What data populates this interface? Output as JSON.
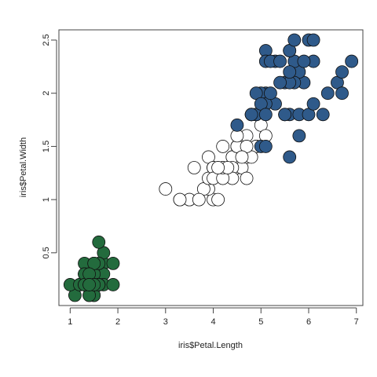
{
  "chart_data": {
    "type": "scatter",
    "x_label": "iris$Petal.Length",
    "y_label": "iris$Petal.Width",
    "xlim": [
      0.764,
      7.136
    ],
    "ylim": [
      0.004,
      2.596
    ],
    "xticks": [
      1,
      2,
      3,
      4,
      5,
      6,
      7
    ],
    "yticks": [
      0.5,
      1.0,
      1.5,
      2.0,
      2.5
    ],
    "series": [
      {
        "color": "#236b3d",
        "x": [
          1.4,
          1.4,
          1.3,
          1.5,
          1.4,
          1.7,
          1.4,
          1.5,
          1.4,
          1.5,
          1.5,
          1.6,
          1.4,
          1.1,
          1.2,
          1.5,
          1.3,
          1.4,
          1.7,
          1.5,
          1.7,
          1.5,
          1.0,
          1.7,
          1.9,
          1.6,
          1.6,
          1.5,
          1.4,
          1.6,
          1.6,
          1.5,
          1.5,
          1.4,
          1.5,
          1.2,
          1.3,
          1.4,
          1.3,
          1.5,
          1.3,
          1.3,
          1.3,
          1.6,
          1.9,
          1.4,
          1.6,
          1.4,
          1.5,
          1.4
        ],
        "values": [
          0.2,
          0.2,
          0.2,
          0.2,
          0.2,
          0.4,
          0.3,
          0.2,
          0.2,
          0.1,
          0.2,
          0.2,
          0.1,
          0.1,
          0.2,
          0.4,
          0.4,
          0.3,
          0.3,
          0.3,
          0.2,
          0.4,
          0.2,
          0.5,
          0.2,
          0.2,
          0.4,
          0.2,
          0.2,
          0.2,
          0.2,
          0.4,
          0.1,
          0.2,
          0.2,
          0.2,
          0.2,
          0.1,
          0.2,
          0.2,
          0.3,
          0.3,
          0.2,
          0.6,
          0.4,
          0.3,
          0.2,
          0.2,
          0.2,
          0.2
        ]
      },
      {
        "color": "#ffffff",
        "x": [
          4.7,
          4.5,
          4.9,
          4.0,
          4.6,
          4.5,
          4.7,
          3.3,
          4.6,
          3.9,
          3.5,
          4.2,
          4.0,
          4.7,
          3.6,
          4.4,
          4.5,
          4.1,
          4.5,
          3.9,
          4.8,
          4.0,
          4.9,
          4.7,
          4.3,
          4.4,
          4.8,
          5.0,
          4.5,
          3.5,
          3.8,
          3.7,
          3.9,
          5.1,
          4.5,
          4.5,
          4.7,
          4.4,
          4.1,
          4.0,
          4.4,
          4.6,
          4.0,
          3.3,
          4.2,
          4.2,
          4.2,
          4.3,
          3.0,
          4.1
        ],
        "values": [
          1.4,
          1.5,
          1.5,
          1.3,
          1.5,
          1.3,
          1.6,
          1.0,
          1.3,
          1.4,
          1.0,
          1.5,
          1.0,
          1.4,
          1.3,
          1.4,
          1.5,
          1.0,
          1.5,
          1.1,
          1.8,
          1.3,
          1.5,
          1.2,
          1.3,
          1.4,
          1.4,
          1.7,
          1.5,
          1.0,
          1.1,
          1.0,
          1.2,
          1.6,
          1.5,
          1.6,
          1.5,
          1.3,
          1.3,
          1.3,
          1.2,
          1.4,
          1.2,
          1.0,
          1.3,
          1.2,
          1.3,
          1.3,
          1.1,
          1.3
        ]
      },
      {
        "color": "#2f5a8a",
        "x": [
          6.0,
          5.1,
          5.9,
          5.6,
          5.8,
          6.6,
          4.5,
          6.3,
          5.8,
          6.1,
          5.1,
          5.3,
          5.5,
          5.0,
          5.1,
          5.3,
          5.5,
          6.7,
          6.9,
          5.0,
          5.7,
          4.9,
          6.7,
          4.9,
          5.7,
          6.0,
          4.8,
          4.9,
          5.6,
          5.8,
          6.1,
          6.4,
          5.6,
          5.1,
          5.6,
          6.1,
          5.6,
          5.5,
          4.8,
          5.4,
          5.6,
          5.1,
          5.1,
          5.9,
          5.7,
          5.2,
          5.0,
          5.2,
          5.4,
          5.1
        ],
        "values": [
          2.5,
          1.9,
          2.1,
          1.8,
          2.2,
          2.1,
          1.7,
          1.8,
          1.8,
          2.5,
          2.0,
          1.9,
          2.1,
          2.0,
          2.4,
          2.3,
          1.8,
          2.2,
          2.3,
          1.5,
          2.3,
          2.0,
          2.0,
          1.8,
          2.1,
          1.8,
          1.8,
          1.8,
          2.1,
          1.6,
          1.9,
          2.0,
          2.2,
          1.5,
          1.4,
          2.3,
          2.4,
          1.8,
          1.8,
          2.1,
          2.4,
          2.3,
          1.9,
          2.3,
          2.5,
          2.3,
          1.9,
          2.0,
          2.3,
          1.8
        ]
      }
    ]
  }
}
